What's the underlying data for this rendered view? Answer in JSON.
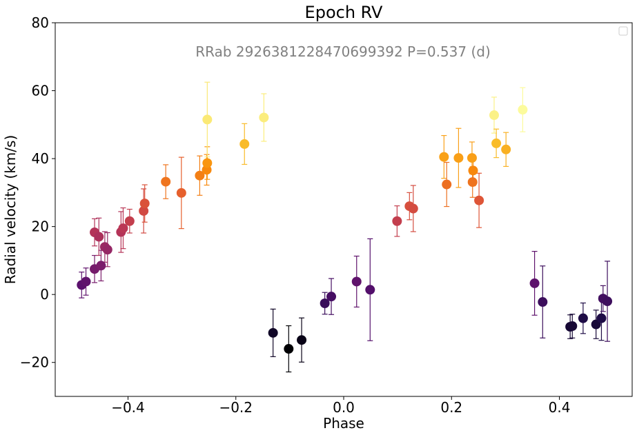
{
  "chart_data": {
    "type": "scatter",
    "title": "Epoch RV",
    "xlabel": "Phase",
    "ylabel": "Radial velocity (km/s)",
    "annotation": "RRab 2926381228470699392 P=0.537 (d)",
    "xlim": [
      -0.535,
      0.535
    ],
    "ylim": [
      -30,
      80
    ],
    "xticks": [
      -0.4,
      -0.2,
      0.0,
      0.2,
      0.4
    ],
    "xtick_labels": [
      "−0.4",
      "−0.2",
      "0.0",
      "0.2",
      "0.4"
    ],
    "yticks": [
      -20,
      0,
      20,
      40,
      60,
      80
    ],
    "ytick_labels": [
      "−20",
      "0",
      "20",
      "40",
      "60",
      "80"
    ],
    "grid": false,
    "legend": "top-right (empty)",
    "colormap": "inferno",
    "color_range": [
      -16,
      55
    ],
    "points": [
      {
        "x": -0.486,
        "y": 2.8,
        "err": 3.8
      },
      {
        "x": -0.478,
        "y": 3.8,
        "err": 4.0
      },
      {
        "x": -0.462,
        "y": 7.5,
        "err": 4.0
      },
      {
        "x": -0.45,
        "y": 8.5,
        "err": 4.5
      },
      {
        "x": -0.443,
        "y": 14.0,
        "err": 4.5
      },
      {
        "x": -0.438,
        "y": 13.2,
        "err": 5.0
      },
      {
        "x": -0.462,
        "y": 18.3,
        "err": 4.0
      },
      {
        "x": -0.454,
        "y": 17.0,
        "err": 5.5
      },
      {
        "x": -0.413,
        "y": 18.4,
        "err": 6.0
      },
      {
        "x": -0.409,
        "y": 19.5,
        "err": 6.0
      },
      {
        "x": -0.397,
        "y": 21.6,
        "err": 3.5
      },
      {
        "x": -0.371,
        "y": 24.6,
        "err": 6.5
      },
      {
        "x": -0.369,
        "y": 26.8,
        "err": 5.5
      },
      {
        "x": -0.33,
        "y": 33.2,
        "err": 5.0
      },
      {
        "x": -0.301,
        "y": 29.9,
        "err": 10.5
      },
      {
        "x": -0.267,
        "y": 35.0,
        "err": 5.8
      },
      {
        "x": -0.254,
        "y": 36.7,
        "err": 4.5
      },
      {
        "x": -0.253,
        "y": 38.7,
        "err": 4.8
      },
      {
        "x": -0.253,
        "y": 51.5,
        "err": 11.0
      },
      {
        "x": -0.184,
        "y": 44.3,
        "err": 6.0
      },
      {
        "x": -0.148,
        "y": 52.1,
        "err": 7.0
      },
      {
        "x": -0.131,
        "y": -11.3,
        "err": 7.0
      },
      {
        "x": -0.102,
        "y": -16.0,
        "err": 6.8
      },
      {
        "x": -0.078,
        "y": -13.4,
        "err": 6.5
      },
      {
        "x": -0.035,
        "y": -2.6,
        "err": 3.2
      },
      {
        "x": -0.023,
        "y": -0.6,
        "err": 5.3
      },
      {
        "x": 0.024,
        "y": 3.8,
        "err": 7.5
      },
      {
        "x": 0.049,
        "y": 1.4,
        "err": 15.0
      },
      {
        "x": 0.099,
        "y": 21.6,
        "err": 4.5
      },
      {
        "x": 0.122,
        "y": 26.0,
        "err": 4.0
      },
      {
        "x": 0.129,
        "y": 25.3,
        "err": 6.8
      },
      {
        "x": 0.186,
        "y": 40.5,
        "err": 6.3
      },
      {
        "x": 0.191,
        "y": 32.4,
        "err": 6.5
      },
      {
        "x": 0.213,
        "y": 40.2,
        "err": 8.7
      },
      {
        "x": 0.238,
        "y": 40.2,
        "err": 4.7
      },
      {
        "x": 0.24,
        "y": 36.5,
        "err": 4.5
      },
      {
        "x": 0.239,
        "y": 33.1,
        "err": 4.5
      },
      {
        "x": 0.251,
        "y": 27.7,
        "err": 8.0
      },
      {
        "x": 0.279,
        "y": 52.8,
        "err": 5.3
      },
      {
        "x": 0.283,
        "y": 44.5,
        "err": 4.2
      },
      {
        "x": 0.301,
        "y": 42.7,
        "err": 5.0
      },
      {
        "x": 0.332,
        "y": 54.4,
        "err": 6.5
      },
      {
        "x": 0.354,
        "y": 3.3,
        "err": 9.4
      },
      {
        "x": 0.369,
        "y": -2.2,
        "err": 10.6
      },
      {
        "x": 0.42,
        "y": -9.5,
        "err": 3.5
      },
      {
        "x": 0.424,
        "y": -9.3,
        "err": 3.5
      },
      {
        "x": 0.444,
        "y": -7.0,
        "err": 4.5
      },
      {
        "x": 0.468,
        "y": -8.8,
        "err": 4.2
      },
      {
        "x": 0.478,
        "y": -7.0,
        "err": 6.5
      },
      {
        "x": 0.481,
        "y": -1.2,
        "err": 3.8
      },
      {
        "x": 0.489,
        "y": -2.0,
        "err": 11.8
      }
    ]
  }
}
